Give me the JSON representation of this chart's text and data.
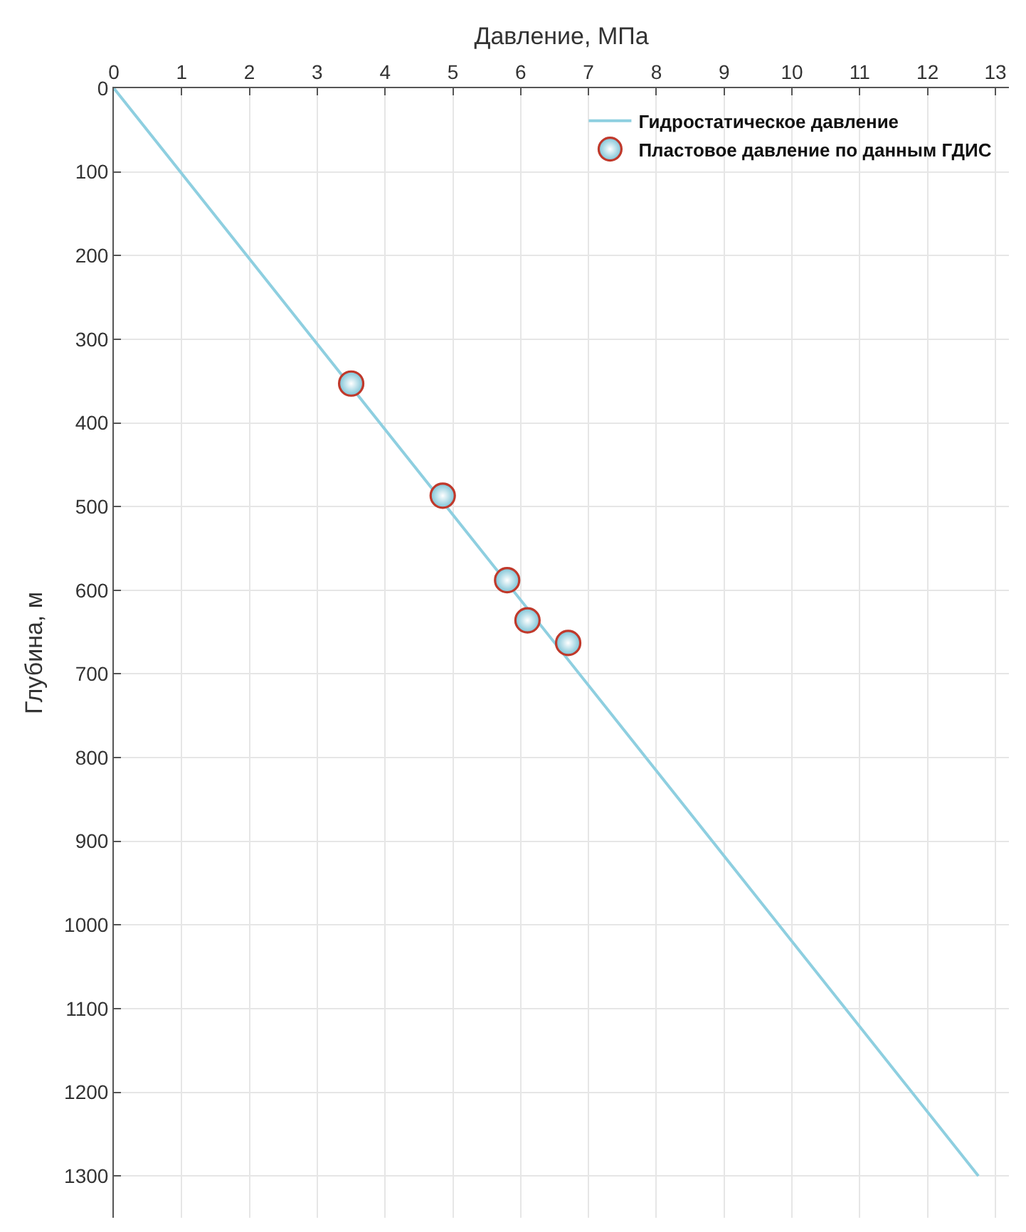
{
  "chart_data": {
    "type": "scatter",
    "xlabel": "Давление, МПа",
    "ylabel": "Глубина, м",
    "xlim": [
      0,
      13.2
    ],
    "xticks": [
      0,
      1,
      2,
      3,
      4,
      5,
      6,
      7,
      8,
      9,
      10,
      11,
      12,
      13
    ],
    "ylim": [
      1350,
      0
    ],
    "yticks": [
      0,
      100,
      200,
      300,
      400,
      500,
      600,
      700,
      800,
      900,
      1000,
      1100,
      1200,
      1300
    ],
    "grid": true,
    "legend": "top right",
    "series": [
      {
        "name": "Гидростатическое давление",
        "type": "line",
        "color": "#8ecfe0",
        "marker": "none",
        "x": [
          0,
          12.75
        ],
        "values": [
          0,
          1300
        ]
      },
      {
        "name": "Пластовое давление по данным ГДИС",
        "color": "#c0392b",
        "marker": "circle",
        "x": [
          3.5,
          4.85,
          5.8,
          6.1,
          6.7
        ],
        "values": [
          353,
          487,
          588,
          636,
          663
        ]
      }
    ]
  }
}
